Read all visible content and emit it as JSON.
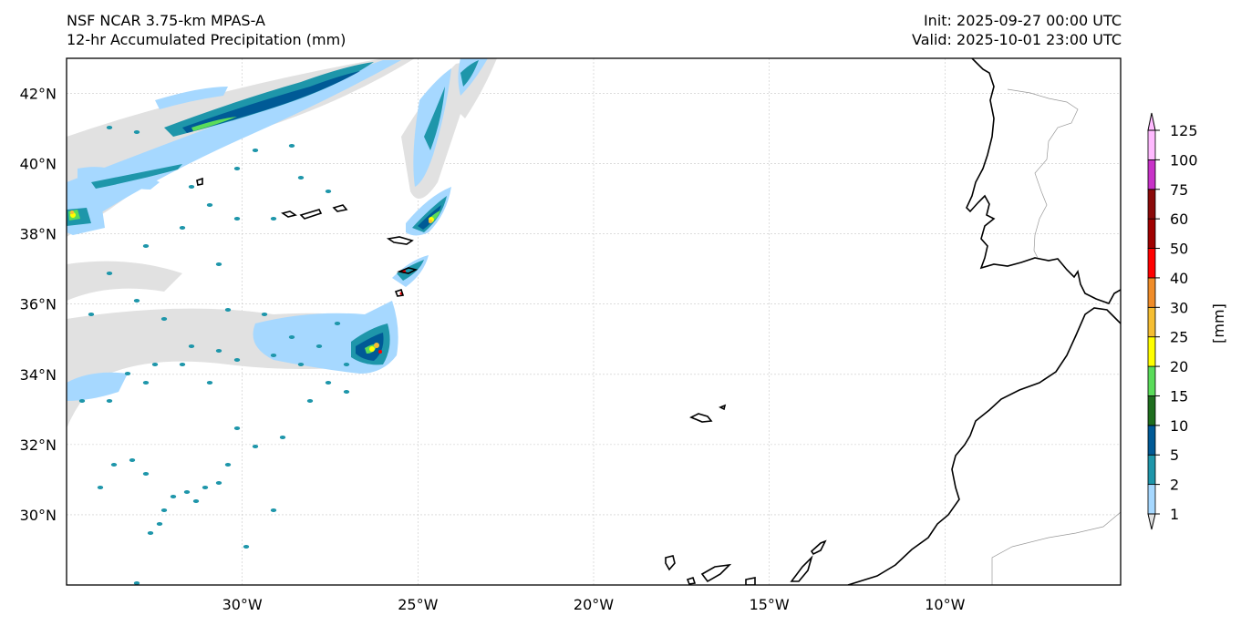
{
  "header": {
    "model": "NSF NCAR 3.75-km MPAS-A",
    "field": "12-hr Accumulated Precipitation (mm)",
    "init": "Init: 2025-09-27 00:00 UTC",
    "valid": "Valid: 2025-10-01 23:00 UTC"
  },
  "map": {
    "lon_range": [
      -35,
      -5
    ],
    "lat_range": [
      28,
      43
    ],
    "lon_ticks": [
      {
        "value": -30,
        "label": "30°W"
      },
      {
        "value": -25,
        "label": "25°W"
      },
      {
        "value": -20,
        "label": "20°W"
      },
      {
        "value": -15,
        "label": "15°W"
      },
      {
        "value": -10,
        "label": "10°W"
      }
    ],
    "lat_ticks": [
      {
        "value": 42,
        "label": "42°N"
      },
      {
        "value": 40,
        "label": "40°N"
      },
      {
        "value": 38,
        "label": "38°N"
      },
      {
        "value": 36,
        "label": "36°N"
      },
      {
        "value": 34,
        "label": "34°N"
      },
      {
        "value": 32,
        "label": "32°N"
      },
      {
        "value": 30,
        "label": "30°N"
      }
    ],
    "gridlines": true
  },
  "colorbar": {
    "unit_label": "[mm]",
    "levels": [
      "1",
      "2",
      "5",
      "10",
      "15",
      "20",
      "25",
      "30",
      "40",
      "50",
      "60",
      "75",
      "100",
      "125"
    ],
    "colors": [
      "#e1e1e1",
      "#a6d8ff",
      "#1e96aa",
      "#005a96",
      "#1e6e1e",
      "#5adc5a",
      "#ffff00",
      "#f5be32",
      "#f08c28",
      "#ff0000",
      "#a00000",
      "#8b0a0a",
      "#c832c8",
      "#ffbaff"
    ]
  }
}
